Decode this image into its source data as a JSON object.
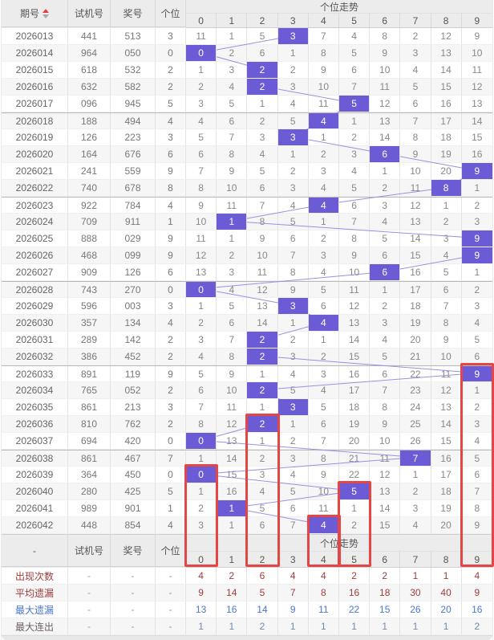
{
  "header": {
    "period": "期号",
    "test": "试机号",
    "prize": "奖号",
    "digit": "个位",
    "trend": "个位走势",
    "trend_columns": [
      "0",
      "1",
      "2",
      "3",
      "4",
      "5",
      "6",
      "7",
      "8",
      "9"
    ]
  },
  "repeat_header": {
    "period": "-",
    "test": "试机号",
    "prize": "奖号",
    "digit": "个位",
    "trend": "个位走势"
  },
  "colors": {
    "hit_bg": "#6b5cd6",
    "line": "#9a90e2",
    "red_box": "#e64545",
    "summary_red": "#a03c3c",
    "summary_blue": "#4a77cc",
    "summary_blue_light": "#7388ad"
  },
  "rows": [
    {
      "period": "2026013",
      "test": "441",
      "prize": "513",
      "digit": 3,
      "misses": [
        11,
        1,
        5,
        3,
        7,
        4,
        8,
        2,
        12,
        9
      ]
    },
    {
      "period": "2026014",
      "test": "964",
      "prize": "050",
      "digit": 0,
      "misses": [
        0,
        2,
        6,
        1,
        8,
        5,
        9,
        3,
        13,
        10
      ]
    },
    {
      "period": "2026015",
      "test": "618",
      "prize": "532",
      "digit": 2,
      "misses": [
        1,
        3,
        2,
        2,
        9,
        6,
        10,
        4,
        14,
        11
      ]
    },
    {
      "period": "2026016",
      "test": "632",
      "prize": "582",
      "digit": 2,
      "misses": [
        2,
        4,
        2,
        3,
        10,
        7,
        11,
        5,
        15,
        12
      ]
    },
    {
      "period": "2026017",
      "test": "096",
      "prize": "945",
      "digit": 5,
      "misses": [
        3,
        5,
        1,
        4,
        11,
        5,
        12,
        6,
        16,
        13
      ]
    },
    {
      "period": "2026018",
      "test": "188",
      "prize": "494",
      "digit": 4,
      "misses": [
        4,
        6,
        2,
        5,
        4,
        1,
        13,
        7,
        17,
        14
      ]
    },
    {
      "period": "2026019",
      "test": "126",
      "prize": "223",
      "digit": 3,
      "misses": [
        5,
        7,
        3,
        3,
        1,
        2,
        14,
        8,
        18,
        15
      ]
    },
    {
      "period": "2026020",
      "test": "164",
      "prize": "676",
      "digit": 6,
      "misses": [
        6,
        8,
        4,
        1,
        2,
        3,
        6,
        9,
        19,
        16
      ]
    },
    {
      "period": "2026021",
      "test": "241",
      "prize": "559",
      "digit": 9,
      "misses": [
        7,
        9,
        5,
        2,
        3,
        4,
        1,
        10,
        20,
        9
      ]
    },
    {
      "period": "2026022",
      "test": "740",
      "prize": "678",
      "digit": 8,
      "misses": [
        8,
        10,
        6,
        3,
        4,
        5,
        2,
        11,
        8,
        1
      ]
    },
    {
      "period": "2026023",
      "test": "922",
      "prize": "784",
      "digit": 4,
      "misses": [
        9,
        11,
        7,
        4,
        4,
        6,
        3,
        12,
        1,
        2
      ]
    },
    {
      "period": "2026024",
      "test": "709",
      "prize": "911",
      "digit": 1,
      "misses": [
        10,
        1,
        8,
        5,
        1,
        7,
        4,
        13,
        2,
        3
      ]
    },
    {
      "period": "2026025",
      "test": "888",
      "prize": "029",
      "digit": 9,
      "misses": [
        11,
        1,
        9,
        6,
        2,
        8,
        5,
        14,
        3,
        9
      ]
    },
    {
      "period": "2026026",
      "test": "468",
      "prize": "099",
      "digit": 9,
      "misses": [
        12,
        2,
        10,
        7,
        3,
        9,
        6,
        15,
        4,
        9
      ]
    },
    {
      "period": "2026027",
      "test": "909",
      "prize": "126",
      "digit": 6,
      "misses": [
        13,
        3,
        11,
        8,
        4,
        10,
        6,
        16,
        5,
        1
      ]
    },
    {
      "period": "2026028",
      "test": "743",
      "prize": "270",
      "digit": 0,
      "misses": [
        0,
        4,
        12,
        9,
        5,
        11,
        1,
        17,
        6,
        2
      ]
    },
    {
      "period": "2026029",
      "test": "596",
      "prize": "003",
      "digit": 3,
      "misses": [
        1,
        5,
        13,
        3,
        6,
        12,
        2,
        18,
        7,
        3
      ]
    },
    {
      "period": "2026030",
      "test": "357",
      "prize": "134",
      "digit": 4,
      "misses": [
        2,
        6,
        14,
        1,
        4,
        13,
        3,
        19,
        8,
        4
      ]
    },
    {
      "period": "2026031",
      "test": "289",
      "prize": "142",
      "digit": 2,
      "misses": [
        3,
        7,
        2,
        2,
        1,
        14,
        4,
        20,
        9,
        5
      ]
    },
    {
      "period": "2026032",
      "test": "386",
      "prize": "452",
      "digit": 2,
      "misses": [
        4,
        8,
        2,
        3,
        2,
        15,
        5,
        21,
        10,
        6
      ]
    },
    {
      "period": "2026033",
      "test": "891",
      "prize": "119",
      "digit": 9,
      "misses": [
        5,
        9,
        1,
        4,
        3,
        16,
        6,
        22,
        11,
        9
      ]
    },
    {
      "period": "2026034",
      "test": "765",
      "prize": "052",
      "digit": 2,
      "misses": [
        6,
        10,
        2,
        5,
        4,
        17,
        7,
        23,
        12,
        1
      ]
    },
    {
      "period": "2026035",
      "test": "861",
      "prize": "213",
      "digit": 3,
      "misses": [
        7,
        11,
        1,
        3,
        5,
        18,
        8,
        24,
        13,
        2
      ]
    },
    {
      "period": "2026036",
      "test": "810",
      "prize": "762",
      "digit": 2,
      "misses": [
        8,
        12,
        2,
        1,
        6,
        19,
        9,
        25,
        14,
        3
      ]
    },
    {
      "period": "2026037",
      "test": "694",
      "prize": "420",
      "digit": 0,
      "misses": [
        0,
        13,
        1,
        2,
        7,
        20,
        10,
        26,
        15,
        4
      ]
    },
    {
      "period": "2026038",
      "test": "861",
      "prize": "467",
      "digit": 7,
      "misses": [
        1,
        14,
        2,
        3,
        8,
        21,
        11,
        7,
        16,
        5
      ]
    },
    {
      "period": "2026039",
      "test": "364",
      "prize": "450",
      "digit": 0,
      "misses": [
        0,
        15,
        3,
        4,
        9,
        22,
        12,
        1,
        17,
        6
      ]
    },
    {
      "period": "2026040",
      "test": "280",
      "prize": "425",
      "digit": 5,
      "misses": [
        1,
        16,
        4,
        5,
        10,
        5,
        13,
        2,
        18,
        7
      ]
    },
    {
      "period": "2026041",
      "test": "989",
      "prize": "901",
      "digit": 1,
      "misses": [
        2,
        1,
        5,
        6,
        11,
        1,
        14,
        3,
        19,
        8
      ]
    },
    {
      "period": "2026042",
      "test": "448",
      "prize": "854",
      "digit": 4,
      "misses": [
        3,
        1,
        6,
        7,
        4,
        2,
        15,
        4,
        20,
        9
      ]
    }
  ],
  "summary": [
    {
      "label": "出现次数",
      "dash": "-",
      "values": [
        4,
        2,
        6,
        4,
        4,
        2,
        2,
        1,
        1,
        4
      ],
      "style": "red"
    },
    {
      "label": "平均遗漏",
      "dash": "-",
      "values": [
        9,
        14,
        5,
        7,
        8,
        16,
        18,
        30,
        40,
        9
      ],
      "style": "red"
    },
    {
      "label": "最大遗漏",
      "dash": "-",
      "values": [
        13,
        16,
        14,
        9,
        11,
        22,
        15,
        26,
        20,
        16
      ],
      "style": "blue"
    },
    {
      "label": "最大连出",
      "dash": "-",
      "values": [
        1,
        1,
        2,
        1,
        1,
        1,
        1,
        1,
        1,
        2
      ],
      "style": "blue2"
    }
  ],
  "red_boxes": [
    {
      "column": 9,
      "from_period": "2026033"
    },
    {
      "column": 2,
      "from_period": "2026036"
    },
    {
      "column": 0,
      "from_period": "2026039"
    },
    {
      "column": 5,
      "from_period": "2026040"
    },
    {
      "column": 4,
      "from_period": "2026042"
    }
  ],
  "chart_data": {
    "type": "table",
    "title": "个位走势",
    "columns": [
      "期号",
      "试机号",
      "奖号",
      "个位",
      "0",
      "1",
      "2",
      "3",
      "4",
      "5",
      "6",
      "7",
      "8",
      "9"
    ],
    "x": [
      "2026013",
      "2026014",
      "2026015",
      "2026016",
      "2026017",
      "2026018",
      "2026019",
      "2026020",
      "2026021",
      "2026022",
      "2026023",
      "2026024",
      "2026025",
      "2026026",
      "2026027",
      "2026028",
      "2026029",
      "2026030",
      "2026031",
      "2026032",
      "2026033",
      "2026034",
      "2026035",
      "2026036",
      "2026037",
      "2026038",
      "2026039",
      "2026040",
      "2026041",
      "2026042"
    ],
    "series": [
      {
        "name": "个位(命中列)",
        "values": [
          3,
          0,
          2,
          2,
          5,
          4,
          3,
          6,
          9,
          8,
          4,
          1,
          9,
          9,
          6,
          0,
          3,
          4,
          2,
          2,
          9,
          2,
          3,
          2,
          0,
          7,
          0,
          5,
          1,
          4
        ]
      },
      {
        "name": "出现次数",
        "values": [
          4,
          2,
          6,
          4,
          4,
          2,
          2,
          1,
          1,
          4
        ]
      },
      {
        "name": "平均遗漏",
        "values": [
          9,
          14,
          5,
          7,
          8,
          16,
          18,
          30,
          40,
          9
        ]
      },
      {
        "name": "最大遗漏",
        "values": [
          13,
          16,
          14,
          9,
          11,
          22,
          15,
          26,
          20,
          16
        ]
      },
      {
        "name": "最大连出",
        "values": [
          1,
          1,
          2,
          1,
          1,
          1,
          1,
          1,
          1,
          2
        ]
      }
    ],
    "legend_position": "none",
    "grid": true
  }
}
